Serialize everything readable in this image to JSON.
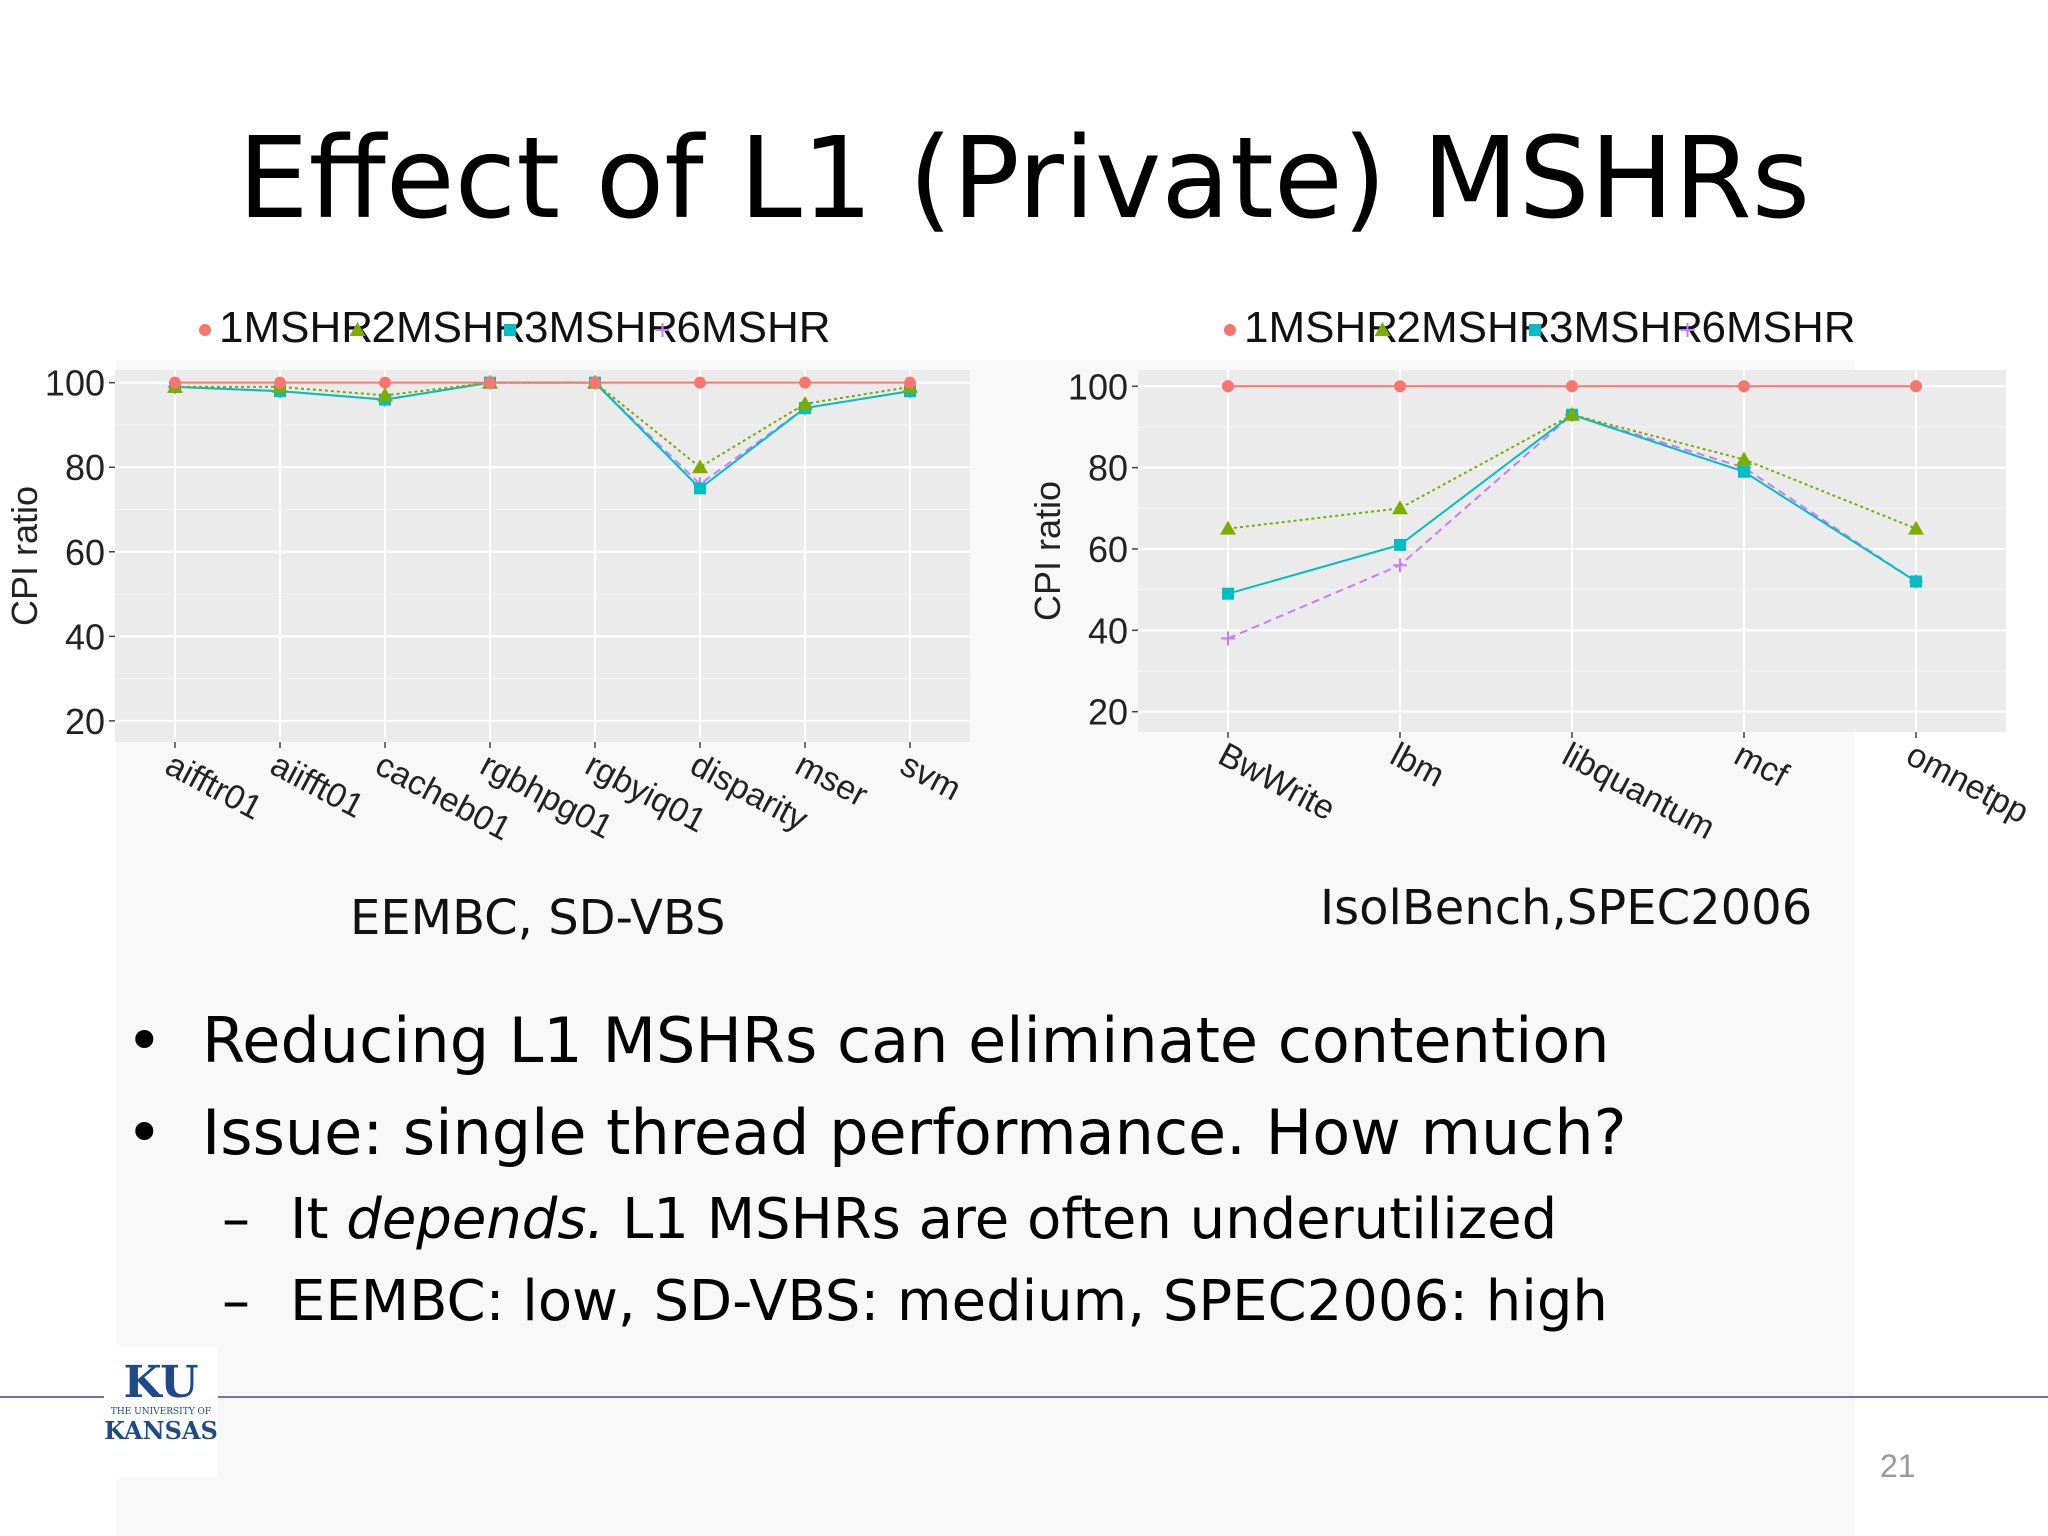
{
  "slide": {
    "title": "Effect of L1 (Private) MSHRs",
    "page_number": "21",
    "captions": [
      "EEMBC, SD-VBS",
      "IsolBench,SPEC2006"
    ],
    "bullets": [
      "Reducing L1 MSHRs can eliminate contention",
      "Issue: single thread performance. How much?"
    ],
    "bullet_marker": "•",
    "sub_marker": "–",
    "sub_bullets": [
      {
        "pre": "It ",
        "em": "depends.",
        "post": " L1 MSHRs are often underutilized"
      },
      {
        "pre": "EEMBC: low, SD-VBS: medium, SPEC2006: high",
        "em": "",
        "post": ""
      }
    ],
    "logo": {
      "initials": "KU",
      "small": "THE UNIVERSITY OF",
      "name": "KANSAS"
    }
  },
  "chart_data": [
    {
      "type": "line",
      "ylabel": "CPI ratio",
      "ylim": [
        15,
        103
      ],
      "yticks": [
        20,
        40,
        60,
        80,
        100
      ],
      "legend_position": "top",
      "categories": [
        "aifftr01",
        "aiifft01",
        "cacheb01",
        "rgbhpg01",
        "rgbyiq01",
        "disparity",
        "mser",
        "svm"
      ],
      "series": [
        {
          "name": "1MSHR",
          "marker": "circle",
          "color": "#f8766d",
          "values": [
            100,
            100,
            100,
            100,
            100,
            100,
            100,
            100
          ]
        },
        {
          "name": "2MSHR",
          "marker": "triangle",
          "color": "#7cae00",
          "values": [
            99,
            99,
            97,
            100,
            100,
            80,
            95,
            99
          ]
        },
        {
          "name": "3MSHR",
          "marker": "square",
          "color": "#00bfc4",
          "values": [
            99,
            98,
            96,
            100,
            100,
            75,
            94,
            98
          ]
        },
        {
          "name": "6MSHR",
          "marker": "plus",
          "color": "#c77cff",
          "values": [
            99,
            98,
            96,
            100,
            100,
            76,
            94,
            98
          ]
        }
      ]
    },
    {
      "type": "line",
      "ylabel": "CPI ratio",
      "ylim": [
        15,
        104
      ],
      "yticks": [
        20,
        40,
        60,
        80,
        100
      ],
      "legend_position": "top",
      "categories": [
        "BwWrite",
        "lbm",
        "libquantum",
        "mcf",
        "omnetpp"
      ],
      "series": [
        {
          "name": "1MSHR",
          "marker": "circle",
          "color": "#f8766d",
          "values": [
            100,
            100,
            100,
            100,
            100
          ]
        },
        {
          "name": "2MSHR",
          "marker": "triangle",
          "color": "#7cae00",
          "values": [
            65,
            70,
            93,
            82,
            65
          ]
        },
        {
          "name": "3MSHR",
          "marker": "square",
          "color": "#00bfc4",
          "values": [
            49,
            61,
            93,
            79,
            52
          ]
        },
        {
          "name": "6MSHR",
          "marker": "plus",
          "color": "#c77cff",
          "values": [
            38,
            56,
            93,
            80,
            52
          ]
        }
      ]
    }
  ]
}
